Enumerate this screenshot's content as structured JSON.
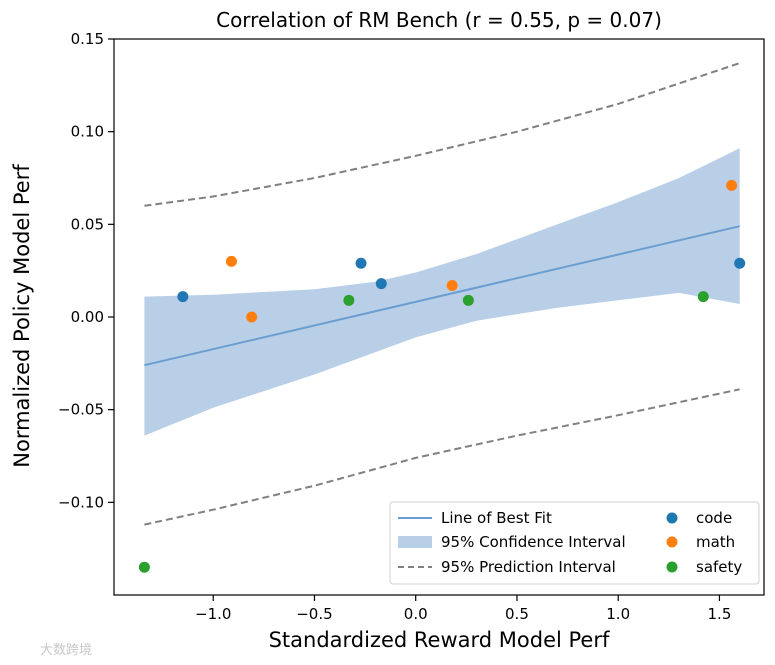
{
  "chart_data": {
    "type": "scatter",
    "title": "Correlation of RM Bench (r = 0.55, p = 0.07)",
    "xlabel": "Standardized Reward Model Perf",
    "ylabel": "Normalized Policy Model Perf",
    "xlim": [
      -1.49,
      1.72
    ],
    "ylim": [
      -0.15,
      0.15
    ],
    "xticks": [
      -1.0,
      -0.5,
      0.0,
      0.5,
      1.0,
      1.5
    ],
    "xtick_labels": [
      "−1.0",
      "−0.5",
      "0.0",
      "0.5",
      "1.0",
      "1.5"
    ],
    "yticks": [
      -0.1,
      -0.05,
      0.0,
      0.05,
      0.1,
      0.15
    ],
    "ytick_labels": [
      "−0.10",
      "−0.05",
      "0.00",
      "0.05",
      "0.10",
      "0.15"
    ],
    "grid": false,
    "legend_position": "lower-right",
    "series": [
      {
        "name": "code",
        "color": "#1f77b4",
        "x": [
          -1.15,
          -0.27,
          -0.17,
          1.6
        ],
        "y": [
          0.011,
          0.029,
          0.018,
          0.029
        ]
      },
      {
        "name": "math",
        "color": "#ff7f0e",
        "x": [
          -0.91,
          -0.81,
          0.18,
          1.56
        ],
        "y": [
          0.03,
          0.0,
          0.017,
          0.071
        ]
      },
      {
        "name": "safety",
        "color": "#2ca02c",
        "x": [
          -1.34,
          -0.33,
          0.26,
          1.42
        ],
        "y": [
          -0.135,
          0.009,
          0.009,
          0.011
        ]
      }
    ],
    "fit": {
      "name": "Line of Best Fit",
      "color": "#6a9ed0",
      "x": [
        -1.34,
        1.6
      ],
      "y": [
        -0.026,
        0.049
      ]
    },
    "confidence_interval": {
      "name": "95% Confidence Interval",
      "color": "#b9cfe7",
      "x": [
        -1.34,
        -1.0,
        -0.5,
        -0.2,
        0.0,
        0.3,
        0.7,
        1.0,
        1.3,
        1.6
      ],
      "upper": [
        0.011,
        0.012,
        0.015,
        0.019,
        0.024,
        0.034,
        0.05,
        0.062,
        0.075,
        0.091
      ],
      "lower": [
        -0.064,
        -0.049,
        -0.031,
        -0.019,
        -0.011,
        -0.002,
        0.005,
        0.009,
        0.013,
        0.007
      ]
    },
    "prediction_interval": {
      "name": "95% Prediction Interval",
      "color": "#808080",
      "x": [
        -1.34,
        -1.0,
        -0.5,
        0.0,
        0.5,
        1.0,
        1.6
      ],
      "upper": [
        0.06,
        0.065,
        0.075,
        0.087,
        0.1,
        0.115,
        0.137
      ],
      "lower": [
        -0.112,
        -0.104,
        -0.091,
        -0.076,
        -0.064,
        -0.053,
        -0.039
      ]
    }
  },
  "watermark": "大数跨境"
}
